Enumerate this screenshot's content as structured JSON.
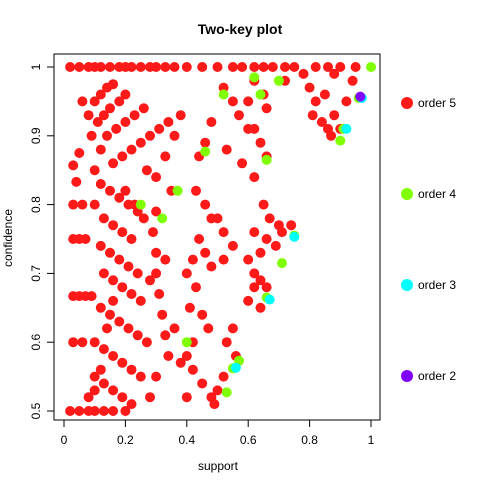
{
  "chart_data": {
    "type": "scatter",
    "title": "Two-key plot",
    "xlabel": "support",
    "ylabel": "confidence",
    "xlim": [
      0,
      1
    ],
    "ylim": [
      0.5,
      1
    ],
    "x_ticks": [
      0,
      0.2,
      0.4,
      0.6,
      0.8,
      1
    ],
    "x_tick_labels": [
      "0",
      "0.2",
      "0.4",
      "0.6",
      "0.8",
      "1"
    ],
    "y_ticks": [
      0.5,
      0.6,
      0.7,
      0.8,
      0.9,
      1
    ],
    "y_tick_labels": [
      "0.5",
      "0.6",
      "0.7",
      "0.8",
      "0.9",
      "1"
    ],
    "grid": false,
    "legend_position": "right",
    "series": [
      {
        "name": "order 5",
        "color": "#ff1a1a",
        "points": [
          [
            0.02,
            1
          ],
          [
            0.05,
            1
          ],
          [
            0.08,
            1
          ],
          [
            0.1,
            1
          ],
          [
            0.12,
            1
          ],
          [
            0.15,
            1
          ],
          [
            0.18,
            1
          ],
          [
            0.2,
            1
          ],
          [
            0.22,
            1
          ],
          [
            0.25,
            1
          ],
          [
            0.28,
            1
          ],
          [
            0.3,
            1
          ],
          [
            0.33,
            1
          ],
          [
            0.36,
            1
          ],
          [
            0.4,
            1
          ],
          [
            0.45,
            1
          ],
          [
            0.5,
            1
          ],
          [
            0.55,
            1
          ],
          [
            0.58,
            1
          ],
          [
            0.62,
            1
          ],
          [
            0.65,
            1
          ],
          [
            0.68,
            1
          ],
          [
            0.72,
            1
          ],
          [
            0.75,
            1
          ],
          [
            0.82,
            1
          ],
          [
            0.86,
            1
          ],
          [
            0.9,
            1
          ],
          [
            0.95,
            1
          ],
          [
            0.03,
            0.75
          ],
          [
            0.05,
            0.75
          ],
          [
            0.07,
            0.75
          ],
          [
            0.03,
            0.667
          ],
          [
            0.05,
            0.667
          ],
          [
            0.07,
            0.667
          ],
          [
            0.09,
            0.667
          ],
          [
            0.02,
            0.5
          ],
          [
            0.05,
            0.5
          ],
          [
            0.08,
            0.5
          ],
          [
            0.1,
            0.5
          ],
          [
            0.13,
            0.5
          ],
          [
            0.16,
            0.5
          ],
          [
            0.2,
            0.5
          ],
          [
            0.03,
            0.6
          ],
          [
            0.06,
            0.6
          ],
          [
            0.03,
            0.8
          ],
          [
            0.06,
            0.8
          ],
          [
            0.04,
            0.833
          ],
          [
            0.03,
            0.857
          ],
          [
            0.05,
            0.875
          ],
          [
            0.06,
            0.95
          ],
          [
            0.08,
            0.93
          ],
          [
            0.1,
            0.95
          ],
          [
            0.12,
            0.96
          ],
          [
            0.14,
            0.97
          ],
          [
            0.16,
            0.975
          ],
          [
            0.09,
            0.9
          ],
          [
            0.11,
            0.92
          ],
          [
            0.13,
            0.93
          ],
          [
            0.15,
            0.94
          ],
          [
            0.18,
            0.95
          ],
          [
            0.2,
            0.96
          ],
          [
            0.12,
            0.88
          ],
          [
            0.14,
            0.9
          ],
          [
            0.17,
            0.91
          ],
          [
            0.2,
            0.92
          ],
          [
            0.23,
            0.93
          ],
          [
            0.26,
            0.94
          ],
          [
            0.16,
            0.86
          ],
          [
            0.19,
            0.87
          ],
          [
            0.22,
            0.88
          ],
          [
            0.25,
            0.89
          ],
          [
            0.28,
            0.9
          ],
          [
            0.31,
            0.91
          ],
          [
            0.34,
            0.92
          ],
          [
            0.38,
            0.93
          ],
          [
            0.1,
            0.85
          ],
          [
            0.12,
            0.83
          ],
          [
            0.15,
            0.82
          ],
          [
            0.18,
            0.81
          ],
          [
            0.21,
            0.8
          ],
          [
            0.24,
            0.79
          ],
          [
            0.1,
            0.8
          ],
          [
            0.13,
            0.78
          ],
          [
            0.16,
            0.77
          ],
          [
            0.19,
            0.76
          ],
          [
            0.22,
            0.75
          ],
          [
            0.12,
            0.74
          ],
          [
            0.15,
            0.73
          ],
          [
            0.18,
            0.72
          ],
          [
            0.21,
            0.71
          ],
          [
            0.24,
            0.7
          ],
          [
            0.13,
            0.7
          ],
          [
            0.16,
            0.69
          ],
          [
            0.19,
            0.68
          ],
          [
            0.22,
            0.67
          ],
          [
            0.25,
            0.66
          ],
          [
            0.12,
            0.65
          ],
          [
            0.15,
            0.64
          ],
          [
            0.18,
            0.63
          ],
          [
            0.21,
            0.62
          ],
          [
            0.24,
            0.61
          ],
          [
            0.27,
            0.6
          ],
          [
            0.1,
            0.6
          ],
          [
            0.13,
            0.59
          ],
          [
            0.16,
            0.58
          ],
          [
            0.19,
            0.57
          ],
          [
            0.22,
            0.56
          ],
          [
            0.25,
            0.55
          ],
          [
            0.1,
            0.55
          ],
          [
            0.13,
            0.54
          ],
          [
            0.16,
            0.53
          ],
          [
            0.19,
            0.52
          ],
          [
            0.22,
            0.51
          ],
          [
            0.08,
            0.52
          ],
          [
            0.1,
            0.53
          ],
          [
            0.12,
            0.56
          ],
          [
            0.14,
            0.62
          ],
          [
            0.16,
            0.66
          ],
          [
            0.2,
            0.82
          ],
          [
            0.23,
            0.8
          ],
          [
            0.26,
            0.78
          ],
          [
            0.29,
            0.76
          ],
          [
            0.3,
            0.73
          ],
          [
            0.3,
            0.7
          ],
          [
            0.31,
            0.67
          ],
          [
            0.32,
            0.64
          ],
          [
            0.33,
            0.61
          ],
          [
            0.34,
            0.58
          ],
          [
            0.3,
            0.55
          ],
          [
            0.28,
            0.52
          ],
          [
            0.27,
            0.85
          ],
          [
            0.3,
            0.84
          ],
          [
            0.33,
            0.87
          ],
          [
            0.36,
            0.9
          ],
          [
            0.3,
            0.79
          ],
          [
            0.35,
            0.82
          ],
          [
            0.28,
            0.69
          ],
          [
            0.33,
            0.72
          ],
          [
            0.36,
            0.62
          ],
          [
            0.38,
            0.57
          ],
          [
            0.4,
            0.7
          ],
          [
            0.42,
            0.72
          ],
          [
            0.44,
            0.75
          ],
          [
            0.46,
            0.73
          ],
          [
            0.48,
            0.71
          ],
          [
            0.41,
            0.65
          ],
          [
            0.43,
            0.68
          ],
          [
            0.45,
            0.64
          ],
          [
            0.47,
            0.62
          ],
          [
            0.42,
            0.56
          ],
          [
            0.45,
            0.54
          ],
          [
            0.48,
            0.52
          ],
          [
            0.4,
            0.52
          ],
          [
            0.44,
            0.87
          ],
          [
            0.46,
            0.89
          ],
          [
            0.48,
            0.92
          ],
          [
            0.43,
            0.82
          ],
          [
            0.46,
            0.8
          ],
          [
            0.48,
            0.78
          ],
          [
            0.42,
            0.6
          ],
          [
            0.4,
            0.58
          ],
          [
            0.52,
            0.97
          ],
          [
            0.55,
            0.95
          ],
          [
            0.57,
            0.93
          ],
          [
            0.6,
            0.91
          ],
          [
            0.53,
            0.88
          ],
          [
            0.58,
            0.86
          ],
          [
            0.62,
            0.84
          ],
          [
            0.6,
            0.95
          ],
          [
            0.62,
            0.98
          ],
          [
            0.65,
            0.96
          ],
          [
            0.66,
            0.94
          ],
          [
            0.62,
            0.91
          ],
          [
            0.64,
            0.89
          ],
          [
            0.66,
            0.87
          ],
          [
            0.65,
            0.8
          ],
          [
            0.67,
            0.78
          ],
          [
            0.7,
            0.77
          ],
          [
            0.66,
            0.75
          ],
          [
            0.69,
            0.74
          ],
          [
            0.62,
            0.76
          ],
          [
            0.64,
            0.73
          ],
          [
            0.6,
            0.72
          ],
          [
            0.62,
            0.7
          ],
          [
            0.64,
            0.69
          ],
          [
            0.62,
            0.68
          ],
          [
            0.66,
            0.68
          ],
          [
            0.6,
            0.66
          ],
          [
            0.64,
            0.65
          ],
          [
            0.55,
            0.62
          ],
          [
            0.53,
            0.6
          ],
          [
            0.56,
            0.58
          ],
          [
            0.52,
            0.55
          ],
          [
            0.5,
            0.53
          ],
          [
            0.49,
            0.51
          ],
          [
            0.5,
            0.78
          ],
          [
            0.52,
            0.76
          ],
          [
            0.55,
            0.74
          ],
          [
            0.52,
            0.72
          ],
          [
            0.72,
            0.98
          ],
          [
            0.78,
            0.99
          ],
          [
            0.8,
            0.97
          ],
          [
            0.82,
            0.95
          ],
          [
            0.85,
            0.96
          ],
          [
            0.81,
            0.93
          ],
          [
            0.84,
            0.92
          ],
          [
            0.86,
            0.91
          ],
          [
            0.88,
            0.93
          ],
          [
            0.9,
            0.91
          ],
          [
            0.92,
            0.95
          ],
          [
            0.71,
            0.76
          ],
          [
            0.74,
            0.77
          ],
          [
            0.88,
            0.99
          ],
          [
            0.94,
            0.98
          ],
          [
            0.87,
            0.9
          ]
        ]
      },
      {
        "name": "order 4",
        "color": "#80ff00",
        "points": [
          [
            1,
            1
          ],
          [
            0.96,
            0.955
          ],
          [
            0.9,
            0.893
          ],
          [
            0.91,
            0.91
          ],
          [
            0.75,
            0.755
          ],
          [
            0.71,
            0.715
          ],
          [
            0.66,
            0.665
          ],
          [
            0.57,
            0.573
          ],
          [
            0.55,
            0.562
          ],
          [
            0.53,
            0.527
          ],
          [
            0.46,
            0.877
          ],
          [
            0.4,
            0.6
          ],
          [
            0.62,
            0.985
          ],
          [
            0.66,
            0.865
          ],
          [
            0.37,
            0.82
          ],
          [
            0.32,
            0.78
          ],
          [
            0.25,
            0.8
          ],
          [
            0.7,
            0.98
          ],
          [
            0.52,
            0.96
          ],
          [
            0.64,
            0.96
          ]
        ]
      },
      {
        "name": "order 3",
        "color": "#00ffff",
        "points": [
          [
            0.97,
            0.955
          ],
          [
            0.92,
            0.91
          ],
          [
            0.75,
            0.753
          ],
          [
            0.56,
            0.563
          ],
          [
            0.67,
            0.662
          ]
        ]
      },
      {
        "name": "order 2",
        "color": "#8000ff",
        "points": [
          [
            0.965,
            0.957
          ]
        ]
      }
    ]
  }
}
